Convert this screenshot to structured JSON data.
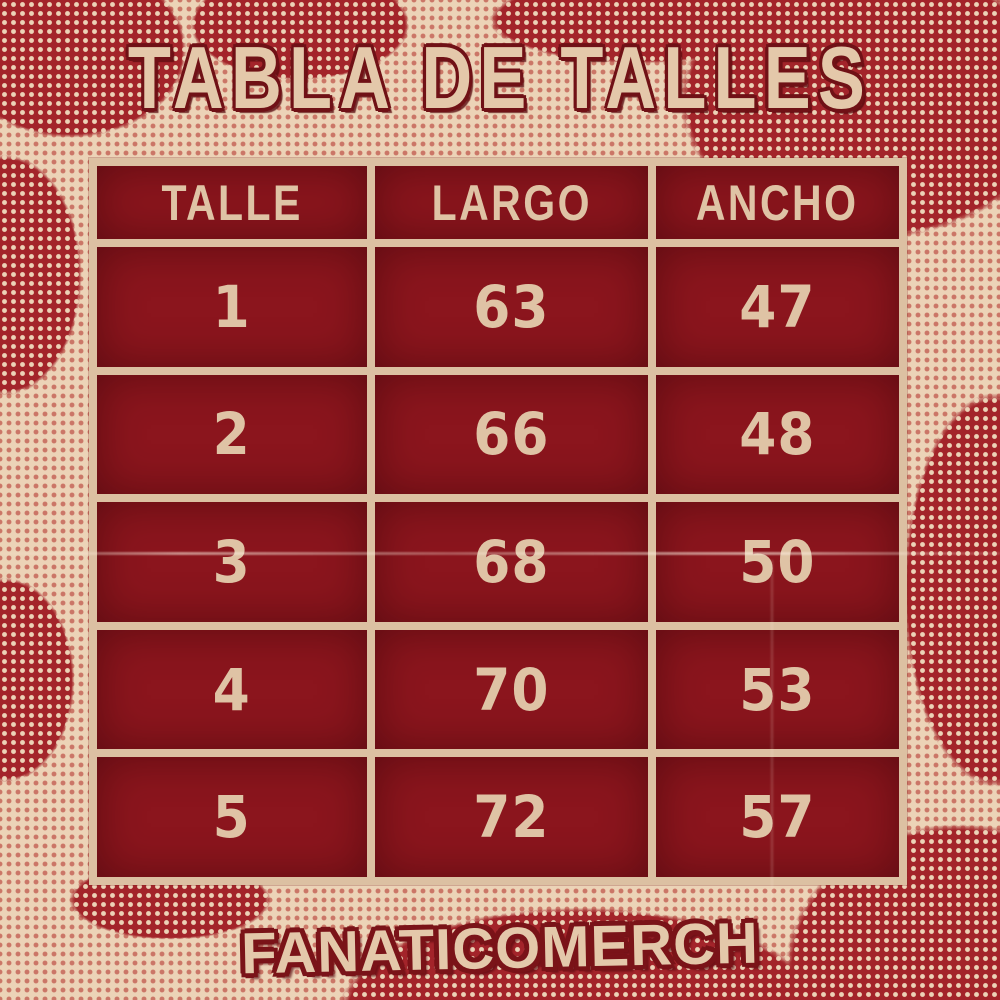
{
  "title": "TABLA DE TALLES",
  "brand": "FANATICOMERCH",
  "table": {
    "headers": [
      "TALLE",
      "LARGO",
      "ANCHO"
    ],
    "rows": [
      [
        "1",
        "63",
        "47"
      ],
      [
        "2",
        "66",
        "48"
      ],
      [
        "3",
        "68",
        "50"
      ],
      [
        "4",
        "70",
        "53"
      ],
      [
        "5",
        "72",
        "57"
      ]
    ]
  },
  "chart_data": {
    "type": "table",
    "title": "TABLA DE TALLES",
    "columns": [
      "TALLE",
      "LARGO",
      "ANCHO"
    ],
    "rows": [
      [
        1,
        63,
        47
      ],
      [
        2,
        66,
        48
      ],
      [
        3,
        68,
        50
      ],
      [
        4,
        70,
        53
      ],
      [
        5,
        72,
        57
      ]
    ]
  },
  "colors": {
    "background_cream": "#ecd3b7",
    "background_red": "#a3242a",
    "cell_red": "#8b151d",
    "grid_cream": "#dcc0a2",
    "text_cream": "#e4c8aa",
    "outline_dark_red": "#701116"
  }
}
